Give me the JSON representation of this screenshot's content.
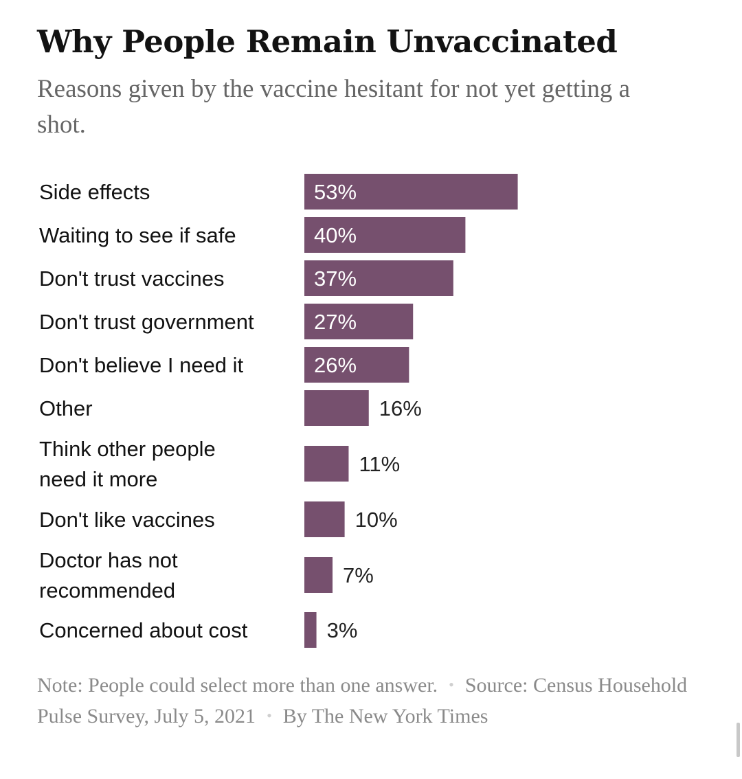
{
  "chart_data": {
    "type": "bar",
    "orientation": "horizontal",
    "title": "Why People Remain Unvaccinated",
    "subtitle": "Reasons given by the vaccine hesitant for not yet getting a shot.",
    "categories": [
      [
        "Side effects"
      ],
      [
        "Waiting to see if safe"
      ],
      [
        "Don't trust vaccines"
      ],
      [
        "Don't trust government"
      ],
      [
        "Don't believe I need it"
      ],
      [
        "Other"
      ],
      [
        "Think other people",
        "need it more"
      ],
      [
        "Don't like vaccines"
      ],
      [
        "Doctor has not",
        "recommended"
      ],
      [
        "Concerned about cost"
      ]
    ],
    "values": [
      53,
      40,
      37,
      27,
      26,
      16,
      11,
      10,
      7,
      3
    ],
    "value_labels": [
      "53%",
      "40%",
      "37%",
      "27%",
      "26%",
      "16%",
      "11%",
      "10%",
      "7%",
      "3%"
    ],
    "unit": "%",
    "bar_color": "#76506e",
    "grid": false,
    "legend": "none"
  },
  "footer": {
    "note": "Note: People could select more than one answer.",
    "source": "Source: Census Household Pulse Survey, July 5, 2021",
    "byline": "By The New York Times",
    "separator": "•"
  }
}
